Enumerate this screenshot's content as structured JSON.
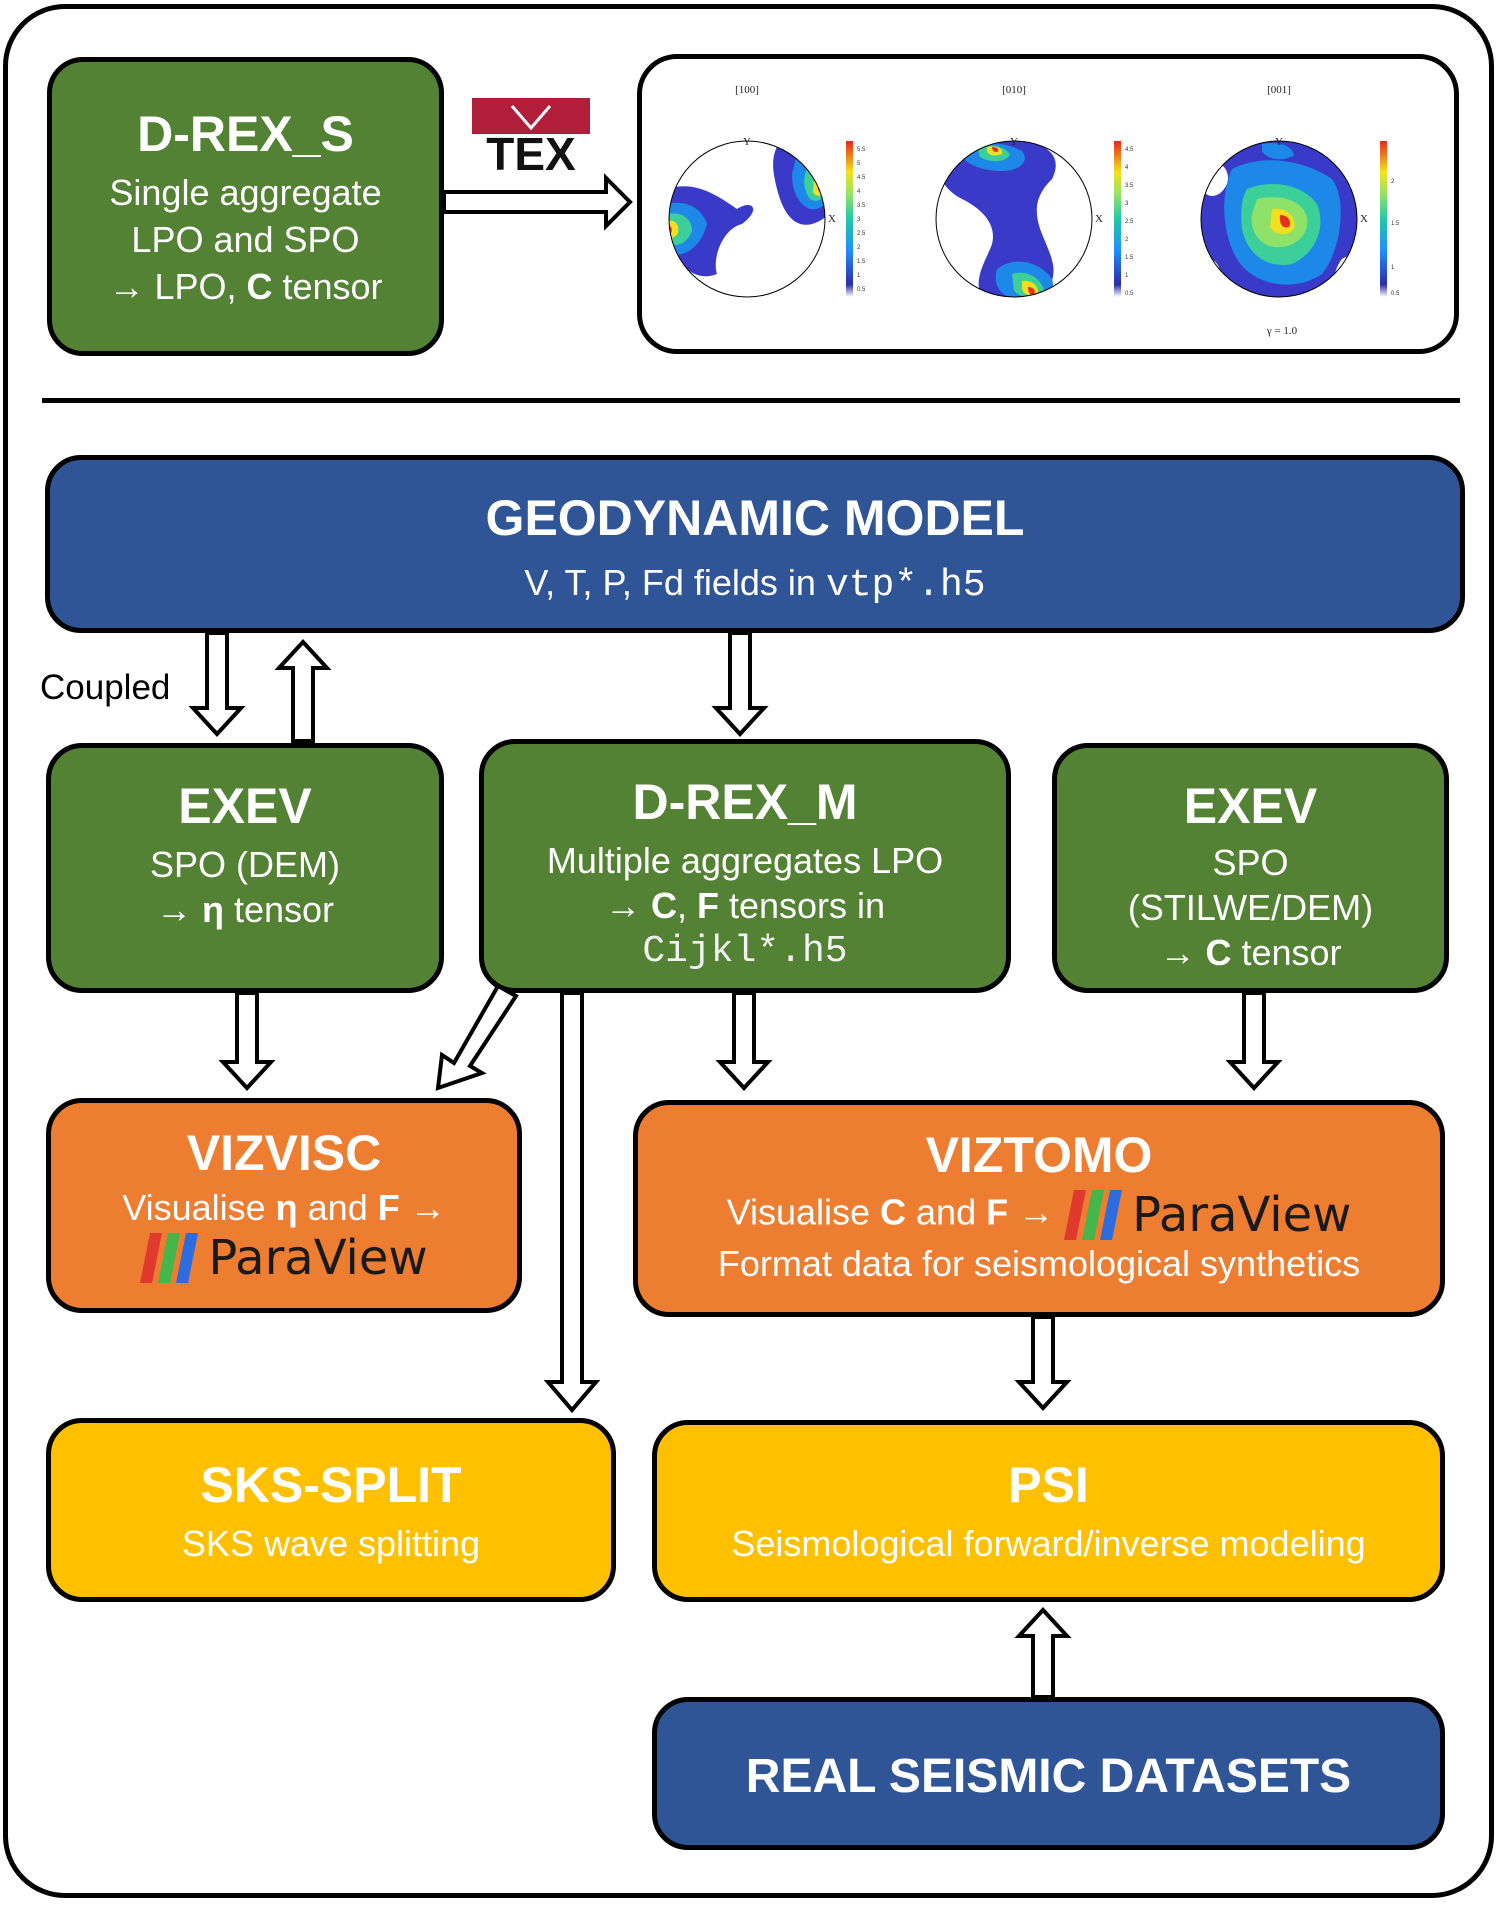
{
  "drex_s": {
    "title": "D-REX_S",
    "line1": "Single aggregate",
    "line2": "LPO and SPO",
    "line3_prefix": "→ LPO, ",
    "line3_bold": "C",
    "line3_suffix": " tensor"
  },
  "mtex_logo": {
    "text": "TEX",
    "letter": "M"
  },
  "pole_figures": {
    "titles": [
      "[100]",
      "[010]",
      "[001]"
    ],
    "axis_label_top": "Y",
    "axis_label_right": "X",
    "colorbar_ticks": [
      [
        "5.5",
        "5",
        "4.5",
        "4",
        "3.5",
        "3",
        "2.5",
        "2",
        "1.5",
        "1",
        "0.5"
      ],
      [
        "4.5",
        "4",
        "3.5",
        "3",
        "2.5",
        "2",
        "1.5",
        "1",
        "0.5"
      ],
      [
        "2",
        "1.5",
        "1",
        "0.5"
      ]
    ],
    "strain_label": "γ = 1.0"
  },
  "geodynamic": {
    "title": "GEODYNAMIC MODEL",
    "subtitle_text": "V, T, P, Fd fields in ",
    "subtitle_code": "vtp*.h5"
  },
  "coupled_label": "Coupled",
  "exev_left": {
    "title": "EXEV",
    "line1": "SPO (DEM)",
    "line2_prefix": "→ ",
    "line2_bold": "η",
    "line2_suffix": " tensor"
  },
  "drex_m": {
    "title": "D-REX_M",
    "line1": "Multiple aggregates LPO",
    "line2_prefix": "→ ",
    "line2_bold1": "C",
    "line2_mid": ", ",
    "line2_bold2": "F",
    "line2_suffix": " tensors in",
    "line3_code": "Cijkl*.h5"
  },
  "exev_right": {
    "title": "EXEV",
    "line1": "SPO",
    "line2": "(STILWE/DEM)",
    "line3_prefix": "→ ",
    "line3_bold": "C",
    "line3_suffix": " tensor"
  },
  "vizvisc": {
    "title": "VIZVISC",
    "line1_a": "Visualise ",
    "line1_b": "η",
    "line1_c": " and ",
    "line1_d": "F",
    "line1_e": " →",
    "paraview": "ParaView"
  },
  "viztomo": {
    "title": "VIZTOMO",
    "line1_a": "Visualise ",
    "line1_b": "C",
    "line1_c": " and ",
    "line1_d": "F",
    "line1_e": " → ",
    "paraview": "ParaView",
    "line2": "Format data for seismological synthetics"
  },
  "sks": {
    "title": "SKS-SPLIT",
    "subtitle": "SKS wave splitting"
  },
  "psi": {
    "title": "PSI",
    "subtitle": "Seismological forward/inverse modeling"
  },
  "real": {
    "title": "REAL SEISMIC DATASETS"
  },
  "colors": {
    "green": "#548235",
    "blue": "#2F5597",
    "orange": "#ED7D31",
    "yellow": "#FFC000",
    "mtex_red": "#B01E3A",
    "paraview_red": "#E03A2F",
    "paraview_green": "#45B649",
    "paraview_blue": "#2D6CDF"
  }
}
